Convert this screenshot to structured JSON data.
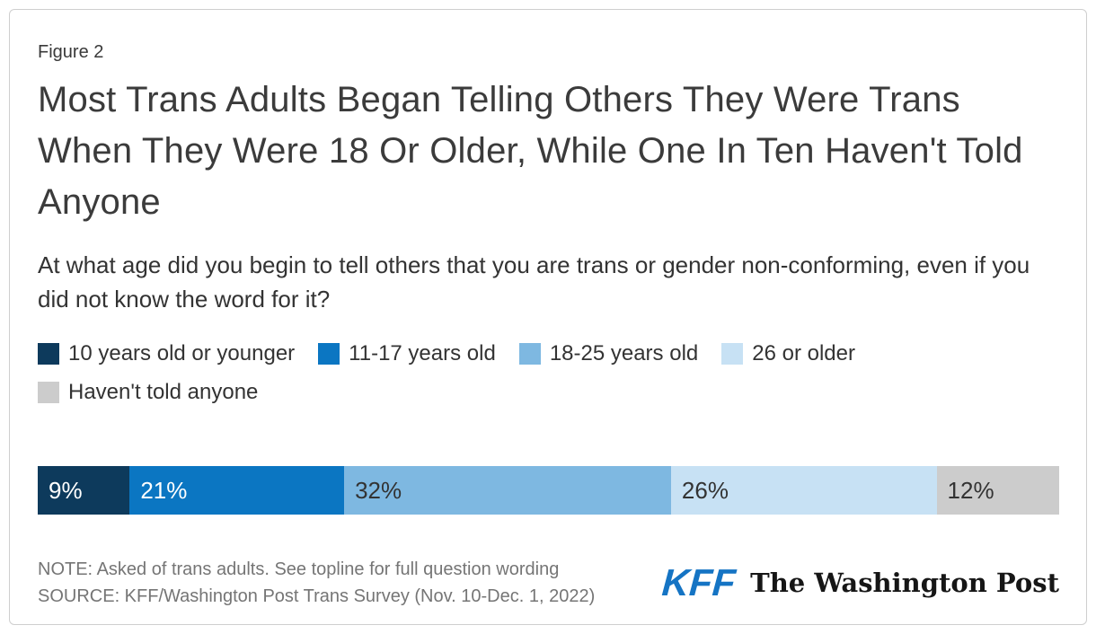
{
  "figure_label": "Figure 2",
  "title": "Most Trans Adults Began Telling Others They Were Trans When They Were 18 Or Older, While One In Ten Haven't Told Anyone",
  "subtitle": "At what age did you begin to tell others that you are trans or gender non-conforming, even if you did not know the word for it?",
  "chart_data": {
    "type": "bar",
    "stacked": true,
    "orientation": "horizontal",
    "title": "Most Trans Adults Began Telling Others They Were Trans When They Were 18 Or Older, While One In Ten Haven't Told Anyone",
    "question": "At what age did you begin to tell others that you are trans or gender non-conforming, even if you did not know the word for it?",
    "categories": [
      "10 years old or younger",
      "11-17 years old",
      "18-25 years old",
      "26 or older",
      "Haven't told anyone"
    ],
    "values": [
      9,
      21,
      32,
      26,
      12
    ],
    "labels": [
      "9%",
      "21%",
      "32%",
      "26%",
      "12%"
    ],
    "colors": [
      "#0d3a5c",
      "#0b76c2",
      "#7eb8e1",
      "#c7e1f4",
      "#cccccc"
    ],
    "label_colors": [
      "#ffffff",
      "#ffffff",
      "#333333",
      "#333333",
      "#333333"
    ],
    "xlim": [
      0,
      100
    ],
    "legend_position": "top",
    "grid": false
  },
  "footer": {
    "note": "NOTE: Asked of trans adults. See topline for full question wording",
    "source": "SOURCE: KFF/Washington Post Trans Survey (Nov. 10-Dec. 1, 2022)",
    "kff_logo_text": "KFF",
    "kff_logo_color": "#1574c4",
    "wapo_logo_text": "The Washington Post"
  }
}
